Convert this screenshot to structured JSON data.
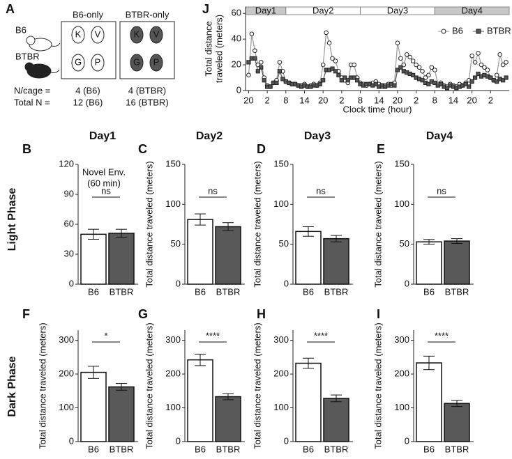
{
  "diagram": {
    "panel_label": "A",
    "strain_1": "B6",
    "strain_2": "BTBR",
    "cage_1_title": "B6-only",
    "cage_2_title": "BTBR-only",
    "cage_letters": [
      "K",
      "V",
      "G",
      "P"
    ],
    "row_1_label": "N/cage =",
    "row_1_values": [
      "4 (B6)",
      "4 (BTBR)"
    ],
    "row_2_label": "Total N =",
    "row_2_values": [
      "12 (B6)",
      "16 (BTBR)"
    ]
  },
  "column_titles": [
    "Day1",
    "Day2",
    "Day3",
    "Day4"
  ],
  "row_titles": [
    "Light Phase",
    "Dark Phase"
  ],
  "chart_data": [
    {
      "type": "line",
      "panel_label": "J",
      "ylabel": [
        "Total distance",
        "traveled (meters)"
      ],
      "xlabel": "Clock time (hour)",
      "xlim": [
        -1,
        84
      ],
      "ylim": [
        0,
        65
      ],
      "yticks": [
        0,
        20,
        40,
        60
      ],
      "xticks": [
        {
          "value": 0,
          "label": "20"
        },
        {
          "value": 6,
          "label": "2"
        },
        {
          "value": 12,
          "label": "8"
        },
        {
          "value": 18,
          "label": "14"
        },
        {
          "value": 24,
          "label": "20"
        },
        {
          "value": 30,
          "label": "2"
        },
        {
          "value": 36,
          "label": "8"
        },
        {
          "value": 42,
          "label": "14"
        },
        {
          "value": 48,
          "label": "20"
        },
        {
          "value": 54,
          "label": "2"
        },
        {
          "value": 60,
          "label": "8"
        },
        {
          "value": 66,
          "label": "14"
        },
        {
          "value": 72,
          "label": "20"
        },
        {
          "value": 78,
          "label": "2"
        }
      ],
      "day_bands": [
        {
          "label": "Day1",
          "start": -1,
          "end": 12,
          "color": "#c8c8c8"
        },
        {
          "label": "Day2",
          "start": 12,
          "end": 36,
          "color": "#ffffff"
        },
        {
          "label": "Day3",
          "start": 36,
          "end": 60,
          "color": "#ffffff"
        },
        {
          "label": "Day4",
          "start": 60,
          "end": 84,
          "color": "#c8c8c8"
        }
      ],
      "legend": "top-right",
      "x": [
        0,
        1,
        2,
        3,
        4,
        5,
        6,
        7,
        8,
        9,
        10,
        11,
        12,
        13,
        14,
        15,
        16,
        17,
        18,
        19,
        20,
        21,
        22,
        23,
        24,
        25,
        26,
        27,
        28,
        29,
        30,
        31,
        32,
        33,
        34,
        35,
        36,
        37,
        38,
        39,
        40,
        41,
        42,
        43,
        44,
        45,
        46,
        47,
        48,
        49,
        50,
        51,
        52,
        53,
        54,
        55,
        56,
        57,
        58,
        59,
        60,
        61,
        62,
        63,
        64,
        65,
        66,
        67,
        68,
        69,
        70,
        71,
        72,
        73,
        74,
        75,
        76,
        77,
        78,
        79,
        80,
        81,
        82,
        83
      ],
      "series": [
        {
          "name": "B6",
          "color": "#ffffff",
          "line_color": "#999999",
          "marker": "circle",
          "values": [
            12,
            44,
            31,
            20,
            22,
            10,
            4,
            3,
            6,
            8,
            22,
            15,
            7,
            6,
            5,
            5,
            4,
            4,
            5,
            3,
            4,
            5,
            4,
            6,
            20,
            45,
            37,
            25,
            23,
            15,
            10,
            8,
            6,
            20,
            20,
            10,
            6,
            5,
            4,
            5,
            6,
            7,
            5,
            3,
            4,
            5,
            4,
            6,
            37,
            25,
            20,
            28,
            26,
            23,
            20,
            18,
            15,
            10,
            12,
            18,
            16,
            5,
            6,
            4,
            3,
            5,
            4,
            3,
            5,
            4,
            6,
            8,
            27,
            22,
            29,
            20,
            18,
            16,
            10,
            8,
            12,
            28,
            20,
            22
          ]
        },
        {
          "name": "BTBR",
          "color": "#555555",
          "line_color": "#555555",
          "marker": "square",
          "values": [
            22,
            25,
            25,
            15,
            18,
            8,
            3,
            3,
            6,
            6,
            15,
            9,
            7,
            6,
            5,
            5,
            4,
            3,
            4,
            3,
            3,
            4,
            4,
            5,
            8,
            16,
            16,
            17,
            15,
            12,
            8,
            10,
            8,
            10,
            10,
            8,
            5,
            4,
            5,
            5,
            4,
            5,
            3,
            4,
            3,
            4,
            5,
            4,
            16,
            18,
            15,
            14,
            13,
            12,
            10,
            9,
            8,
            6,
            5,
            7,
            6,
            4,
            5,
            3,
            2,
            4,
            3,
            2,
            3,
            4,
            5,
            3,
            7,
            10,
            13,
            11,
            12,
            11,
            10,
            8,
            7,
            9,
            8,
            10
          ]
        }
      ]
    },
    {
      "type": "bar",
      "panel_label": "B",
      "annotation": [
        "Novel Env.",
        "(60 min)"
      ],
      "significance": "ns",
      "categories": [
        "B6",
        "BTBR"
      ],
      "values": [
        50,
        51
      ],
      "errors": [
        5,
        4
      ],
      "colors": [
        "#ffffff",
        "#595959"
      ],
      "ylim": [
        0,
        120
      ],
      "yticks": [
        0,
        30,
        60,
        90,
        120
      ]
    },
    {
      "type": "bar",
      "panel_label": "C",
      "ylabel": "Total distance traveled (meters)",
      "significance": "ns",
      "categories": [
        "B6",
        "BTBR"
      ],
      "values": [
        81,
        72
      ],
      "errors": [
        7,
        5
      ],
      "colors": [
        "#ffffff",
        "#595959"
      ],
      "ylim": [
        0,
        150
      ],
      "yticks": [
        0,
        50,
        100,
        150
      ]
    },
    {
      "type": "bar",
      "panel_label": "D",
      "ylabel": "Total distance traveled (meters)",
      "significance": "ns",
      "categories": [
        "B6",
        "BTBR"
      ],
      "values": [
        66,
        57
      ],
      "errors": [
        6,
        4
      ],
      "colors": [
        "#ffffff",
        "#595959"
      ],
      "ylim": [
        0,
        150
      ],
      "yticks": [
        0,
        50,
        100,
        150
      ]
    },
    {
      "type": "bar",
      "panel_label": "E",
      "ylabel": "Total distance traveled (meters)",
      "significance": "ns",
      "categories": [
        "B6",
        "BTBR"
      ],
      "values": [
        53,
        54
      ],
      "errors": [
        3,
        3
      ],
      "colors": [
        "#ffffff",
        "#595959"
      ],
      "ylim": [
        0,
        150
      ],
      "yticks": [
        0,
        50,
        100,
        150
      ]
    },
    {
      "type": "bar",
      "panel_label": "F",
      "ylabel": "Total distance traveled (meters)",
      "significance": "*",
      "categories": [
        "B6",
        "BTBR"
      ],
      "values": [
        205,
        162
      ],
      "errors": [
        18,
        10
      ],
      "colors": [
        "#ffffff",
        "#595959"
      ],
      "ylim": [
        0,
        330
      ],
      "yticks": [
        0,
        100,
        200,
        300
      ]
    },
    {
      "type": "bar",
      "panel_label": "G",
      "ylabel": "Total distance traveled (meters)",
      "significance": "****",
      "categories": [
        "B6",
        "BTBR"
      ],
      "values": [
        242,
        133
      ],
      "errors": [
        17,
        9
      ],
      "colors": [
        "#ffffff",
        "#595959"
      ],
      "ylim": [
        0,
        330
      ],
      "yticks": [
        0,
        100,
        200,
        300
      ]
    },
    {
      "type": "bar",
      "panel_label": "H",
      "ylabel": "Total distance traveled (meters)",
      "significance": "****",
      "categories": [
        "B6",
        "BTBR"
      ],
      "values": [
        232,
        128
      ],
      "errors": [
        15,
        10
      ],
      "colors": [
        "#ffffff",
        "#595959"
      ],
      "ylim": [
        0,
        330
      ],
      "yticks": [
        0,
        100,
        200,
        300
      ]
    },
    {
      "type": "bar",
      "panel_label": "I",
      "ylabel": "Total distance traveled (meters)",
      "significance": "****",
      "categories": [
        "B6",
        "BTBR"
      ],
      "values": [
        233,
        113
      ],
      "errors": [
        20,
        9
      ],
      "colors": [
        "#ffffff",
        "#595959"
      ],
      "ylim": [
        0,
        330
      ],
      "yticks": [
        0,
        100,
        200,
        300
      ]
    }
  ]
}
